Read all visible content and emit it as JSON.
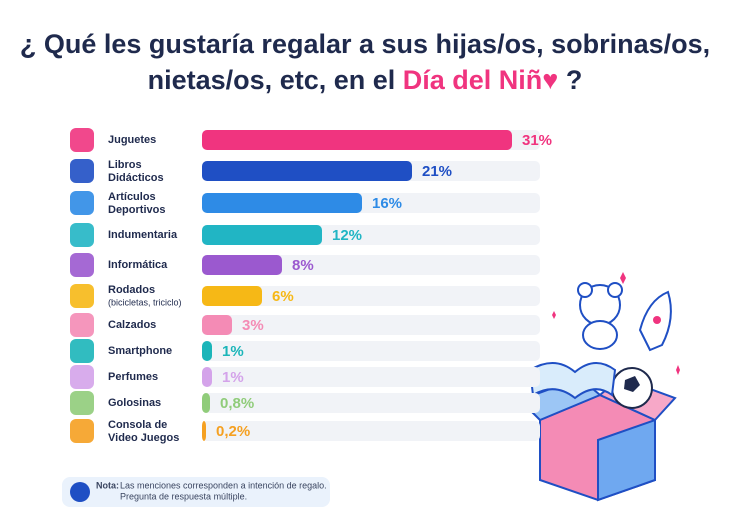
{
  "chart_data": {
    "type": "bar",
    "orientation": "horizontal",
    "title": "¿ Qué les gustaría regalar a sus hijas/os, sobrinas/os,",
    "title_line2": "nietas/os, etc, en el",
    "title_highlight": "Día del Niñ♥",
    "title_end": "?",
    "categories": [
      [
        "Juguetes"
      ],
      [
        "Libros",
        "Didácticos"
      ],
      [
        "Artículos",
        "Deportivos"
      ],
      [
        "Indumentaria"
      ],
      [
        "Informática"
      ],
      [
        "Rodados",
        "(bicicletas, triciclo)"
      ],
      [
        "Calzados"
      ],
      [
        "Smartphone"
      ],
      [
        "Perfumes"
      ],
      [
        "Golosinas"
      ],
      [
        "Consola de",
        "Video Juegos"
      ]
    ],
    "values": [
      31,
      21,
      16,
      12,
      8,
      6,
      3,
      1,
      1,
      0.8,
      0.2
    ],
    "value_labels": [
      "31%",
      "21%",
      "16%",
      "12%",
      "8%",
      "6%",
      "3%",
      "1%",
      "1%",
      "0,8%",
      "0,2%"
    ],
    "colors": [
      "#f0347f",
      "#1f4fc4",
      "#2e8be6",
      "#21b5c4",
      "#9b59cf",
      "#f6b816",
      "#f48bb5",
      "#1bb5b9",
      "#d4a3ea",
      "#90cc7a",
      "#f5a021"
    ],
    "note_label": "Nota:",
    "note": [
      "Las menciones corresponden a intención de regalo.",
      "Pregunta de respuesta múltiple."
    ]
  }
}
